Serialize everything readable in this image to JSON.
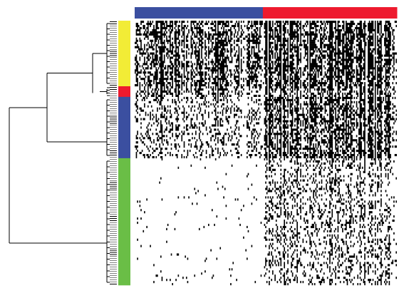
{
  "chart_data": {
    "type": "heatmap",
    "title": "",
    "xlabel": "",
    "ylabel": "",
    "legend": "none",
    "colormap": {
      "low": "#ffffff",
      "high": "#000000"
    },
    "column_groups": [
      {
        "color": "#3b4fa0",
        "count": 110
      },
      {
        "color": "#ee1a2e",
        "count": 115
      }
    ],
    "row_clusters": [
      {
        "color": "#f2ec36",
        "count": 31
      },
      {
        "color": "#ee1a2e",
        "count": 5
      },
      {
        "color": "#3b4fa0",
        "count": 29
      },
      {
        "color": "#6abe46",
        "count": 60
      }
    ],
    "dendrogram": {
      "root_split": [
        [
          "yellow",
          "red",
          "blue"
        ],
        [
          "green"
        ]
      ],
      "second_split": [
        [
          "yellow",
          "red"
        ],
        [
          "blue"
        ]
      ],
      "third_split": [
        [
          "yellow"
        ],
        [
          "red"
        ]
      ]
    },
    "column_density_profile": [
      {
        "cluster": "yellow",
        "left_group": 0.62,
        "right_group": 0.8
      },
      {
        "cluster": "red",
        "left_group": 0.45,
        "right_group": 0.6
      },
      {
        "cluster": "blue",
        "left_group": 0.28,
        "right_group": 0.7
      },
      {
        "cluster": "green",
        "left_group": 0.02,
        "right_group": 0.3
      }
    ]
  }
}
